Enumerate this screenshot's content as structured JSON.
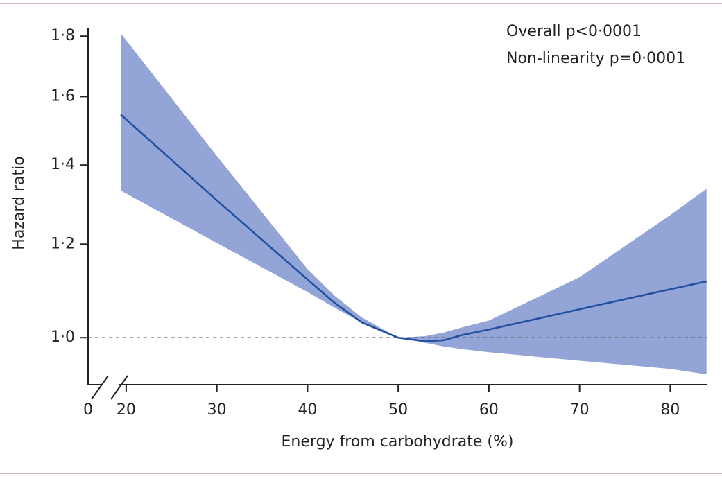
{
  "chart_data": {
    "type": "line",
    "xlabel": "Energy from carbohydrate (%)",
    "ylabel": "Hazard ratio",
    "annotations": [
      "Overall p<0·0001",
      "Non-linearity p=0·0001"
    ],
    "x_origin_label": "0",
    "x": [
      19.4,
      30,
      40,
      43,
      46,
      50,
      53,
      55,
      57,
      60,
      70,
      80,
      84
    ],
    "line": {
      "color": "#1f4f9e",
      "values": [
        1.545,
        1.307,
        1.12,
        1.07,
        1.03,
        1.0,
        0.993,
        0.995,
        1.005,
        1.016,
        1.057,
        1.099,
        1.116
      ]
    },
    "band": {
      "color": "#93a4d6",
      "upper": [
        1.81,
        1.425,
        1.143,
        1.085,
        1.04,
        1.0,
        1.003,
        1.01,
        1.02,
        1.034,
        1.125,
        1.27,
        1.337
      ],
      "lower": [
        1.332,
        1.203,
        1.093,
        1.06,
        1.03,
        1.0,
        0.99,
        0.983,
        0.978,
        0.972,
        0.956,
        0.941,
        0.931
      ]
    },
    "reference_line": 1.0,
    "xlim": [
      15.8,
      84.1
    ],
    "xticks": [
      20,
      30,
      40,
      50,
      60,
      70,
      80
    ],
    "ylim": [
      0.91,
      1.83
    ],
    "yscale": "log",
    "yticks": [
      {
        "value": 1.0,
        "label": "1·0"
      },
      {
        "value": 1.2,
        "label": "1·2"
      },
      {
        "value": 1.4,
        "label": "1·4"
      },
      {
        "value": 1.6,
        "label": "1·6"
      },
      {
        "value": 1.8,
        "label": "1·8"
      }
    ]
  }
}
